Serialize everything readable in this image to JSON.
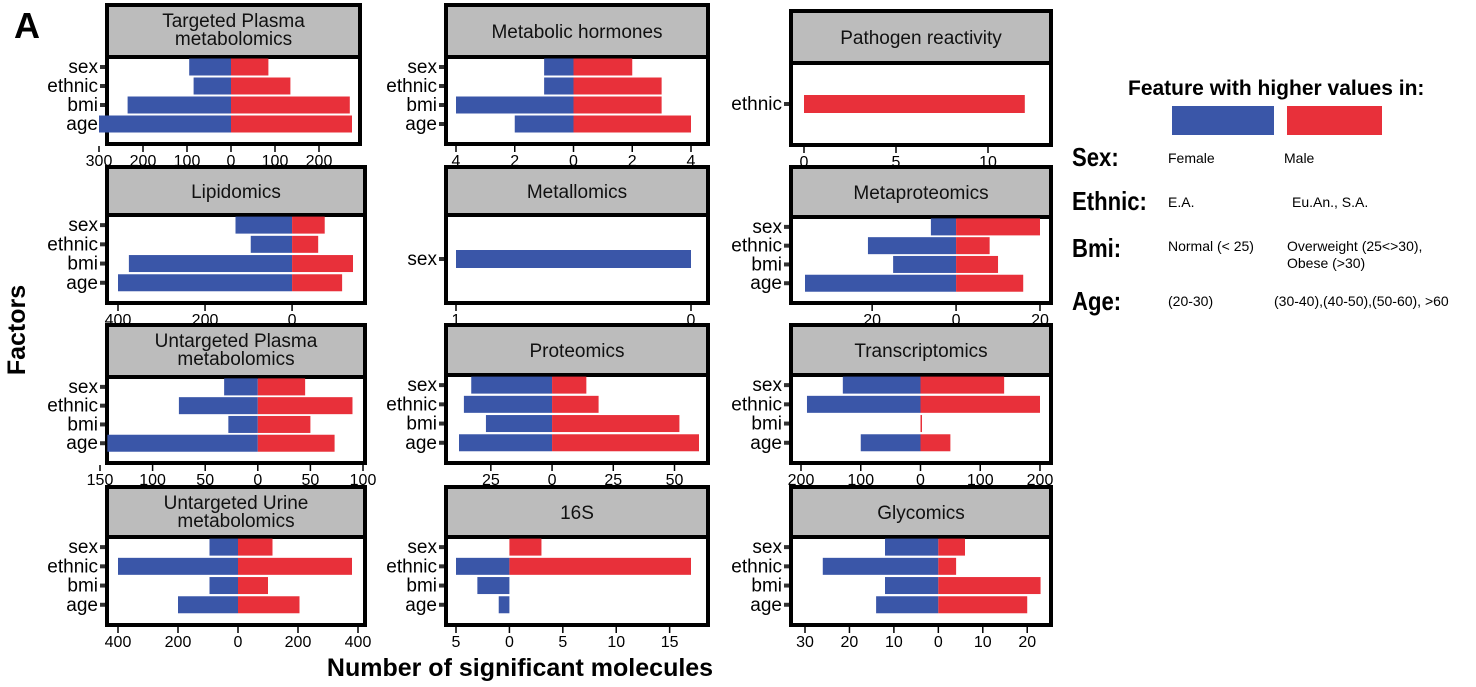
{
  "figure": {
    "panel_letter": "A",
    "y_axis_label": "Factors",
    "x_axis_label": "Number of significant molecules"
  },
  "legend": {
    "title": "Feature with higher values in:",
    "colors": {
      "female_side": "#3a56a8",
      "male_side": "#e8303a"
    },
    "rows": [
      {
        "key": "Sex:",
        "left": "Female",
        "right": "Male"
      },
      {
        "key": "Ethnic:",
        "left": "E.A.",
        "right": "Eu.An., S.A."
      },
      {
        "key": "Bmi:",
        "left": "Normal (< 25)",
        "right": "Overweight (25<>30),\nObese (>30)"
      },
      {
        "key": "Age:",
        "left": "(20-30)",
        "right": "(30-40),(40-50),(50-60), >60"
      }
    ]
  },
  "chart_data": [
    {
      "type": "bar",
      "title": "Targeted Plasma\nmetabolomics",
      "categories": [
        "sex",
        "ethnic",
        "bmi",
        "age"
      ],
      "series": [
        {
          "values": [
            -95,
            -85,
            -235,
            -300
          ]
        },
        {
          "values": [
            85,
            135,
            270,
            275
          ]
        }
      ],
      "xlim": [
        -300,
        275
      ],
      "xticks": [
        -300,
        -200,
        -100,
        0,
        100,
        200
      ],
      "xticklabels": [
        "300",
        "200",
        "100",
        "0",
        "100",
        "200"
      ]
    },
    {
      "type": "bar",
      "title": "Metabolic hormones",
      "categories": [
        "sex",
        "ethnic",
        "bmi",
        "age"
      ],
      "series": [
        {
          "values": [
            -1,
            -1,
            -4,
            -2
          ]
        },
        {
          "values": [
            2,
            3,
            3,
            4
          ]
        }
      ],
      "xlim": [
        -4,
        4
      ],
      "xticks": [
        -4,
        -2,
        0,
        2,
        4
      ],
      "xticklabels": [
        "4",
        "2",
        "0",
        "2",
        "4"
      ]
    },
    {
      "type": "bar",
      "title": "Pathogen reactivity",
      "categories": [
        "ethnic"
      ],
      "series": [
        {
          "values": [
            0
          ]
        },
        {
          "values": [
            12
          ]
        }
      ],
      "xlim": [
        0,
        12.5
      ],
      "xticks": [
        0,
        5,
        10
      ],
      "xticklabels": [
        "0",
        "5",
        "10"
      ]
    },
    {
      "type": "bar",
      "title": "Lipidomics",
      "categories": [
        "sex",
        "ethnic",
        "bmi",
        "age"
      ],
      "series": [
        {
          "values": [
            -130,
            -95,
            -375,
            -400
          ]
        },
        {
          "values": [
            75,
            60,
            140,
            115
          ]
        }
      ],
      "xlim": [
        -400,
        140
      ],
      "xticks": [
        -400,
        -200,
        0
      ],
      "xticklabels": [
        "400",
        "200",
        "0"
      ]
    },
    {
      "type": "bar",
      "title": "Metallomics",
      "categories": [
        "sex"
      ],
      "series": [
        {
          "values": [
            -1
          ]
        },
        {
          "values": [
            0
          ]
        }
      ],
      "xlim": [
        -1,
        0
      ],
      "xticks": [
        -1,
        0
      ],
      "xticklabels": [
        "1",
        "0"
      ]
    },
    {
      "type": "bar",
      "title": "Metaproteomics",
      "categories": [
        "sex",
        "ethnic",
        "bmi",
        "age"
      ],
      "series": [
        {
          "values": [
            -6,
            -21,
            -15,
            -36
          ]
        },
        {
          "values": [
            20,
            8,
            10,
            16
          ]
        }
      ],
      "xlim": [
        -36,
        20
      ],
      "xticks": [
        -20,
        0,
        20
      ],
      "xticklabels": [
        "20",
        "0",
        "20"
      ]
    },
    {
      "type": "bar",
      "title": "Untargeted Plasma\nmetabolomics",
      "categories": [
        "sex",
        "ethnic",
        "bmi",
        "age"
      ],
      "series": [
        {
          "values": [
            -32,
            -75,
            -28,
            -143
          ]
        },
        {
          "values": [
            45,
            90,
            50,
            73
          ]
        }
      ],
      "xlim": [
        -150,
        100
      ],
      "xticks": [
        -150,
        -100,
        -50,
        0,
        50,
        100
      ],
      "xticklabels": [
        "150",
        "100",
        "50",
        "0",
        "50",
        "100"
      ]
    },
    {
      "type": "bar",
      "title": "Proteomics",
      "categories": [
        "sex",
        "ethnic",
        "bmi",
        "age"
      ],
      "series": [
        {
          "values": [
            -33,
            -36,
            -27,
            -38
          ]
        },
        {
          "values": [
            14,
            19,
            52,
            60
          ]
        }
      ],
      "xlim": [
        -38,
        60
      ],
      "xticks": [
        -25,
        0,
        25,
        50
      ],
      "xticklabels": [
        "25",
        "0",
        "25",
        "50"
      ]
    },
    {
      "type": "bar",
      "title": "Transcriptomics",
      "categories": [
        "sex",
        "ethnic",
        "bmi",
        "age"
      ],
      "series": [
        {
          "values": [
            -130,
            -190,
            0,
            -100
          ]
        },
        {
          "values": [
            140,
            200,
            2,
            50
          ]
        }
      ],
      "xlim": [
        -200,
        200
      ],
      "xticks": [
        -200,
        -100,
        0,
        100,
        200
      ],
      "xticklabels": [
        "200",
        "100",
        "0",
        "100",
        "200"
      ]
    },
    {
      "type": "bar",
      "title": "Untargeted Urine\nmetabolomics",
      "categories": [
        "sex",
        "ethnic",
        "bmi",
        "age"
      ],
      "series": [
        {
          "values": [
            -95,
            -400,
            -95,
            -200
          ]
        },
        {
          "values": [
            115,
            380,
            100,
            205
          ]
        }
      ],
      "xlim": [
        -400,
        380
      ],
      "xticks": [
        -400,
        -200,
        0,
        200,
        400
      ],
      "xticklabels": [
        "400",
        "200",
        "0",
        "200",
        "400"
      ]
    },
    {
      "type": "bar",
      "title": "16S",
      "categories": [
        "sex",
        "ethnic",
        "bmi",
        "age"
      ],
      "series": [
        {
          "values": [
            0,
            -5,
            -3,
            -1
          ]
        },
        {
          "values": [
            3,
            17,
            0,
            0
          ]
        }
      ],
      "xlim": [
        -5,
        17
      ],
      "xticks": [
        -5,
        0,
        5,
        10,
        15
      ],
      "xticklabels": [
        "5",
        "0",
        "5",
        "10",
        "15"
      ]
    },
    {
      "type": "bar",
      "title": "Glycomics",
      "categories": [
        "sex",
        "ethnic",
        "bmi",
        "age"
      ],
      "series": [
        {
          "values": [
            -12,
            -26,
            -12,
            -14
          ]
        },
        {
          "values": [
            6,
            4,
            23,
            20
          ]
        }
      ],
      "xlim": [
        -30,
        24
      ],
      "xticks": [
        -30,
        -20,
        -10,
        0,
        10,
        20
      ],
      "xticklabels": [
        "30",
        "20",
        "10",
        "0",
        "10",
        "20"
      ]
    }
  ]
}
